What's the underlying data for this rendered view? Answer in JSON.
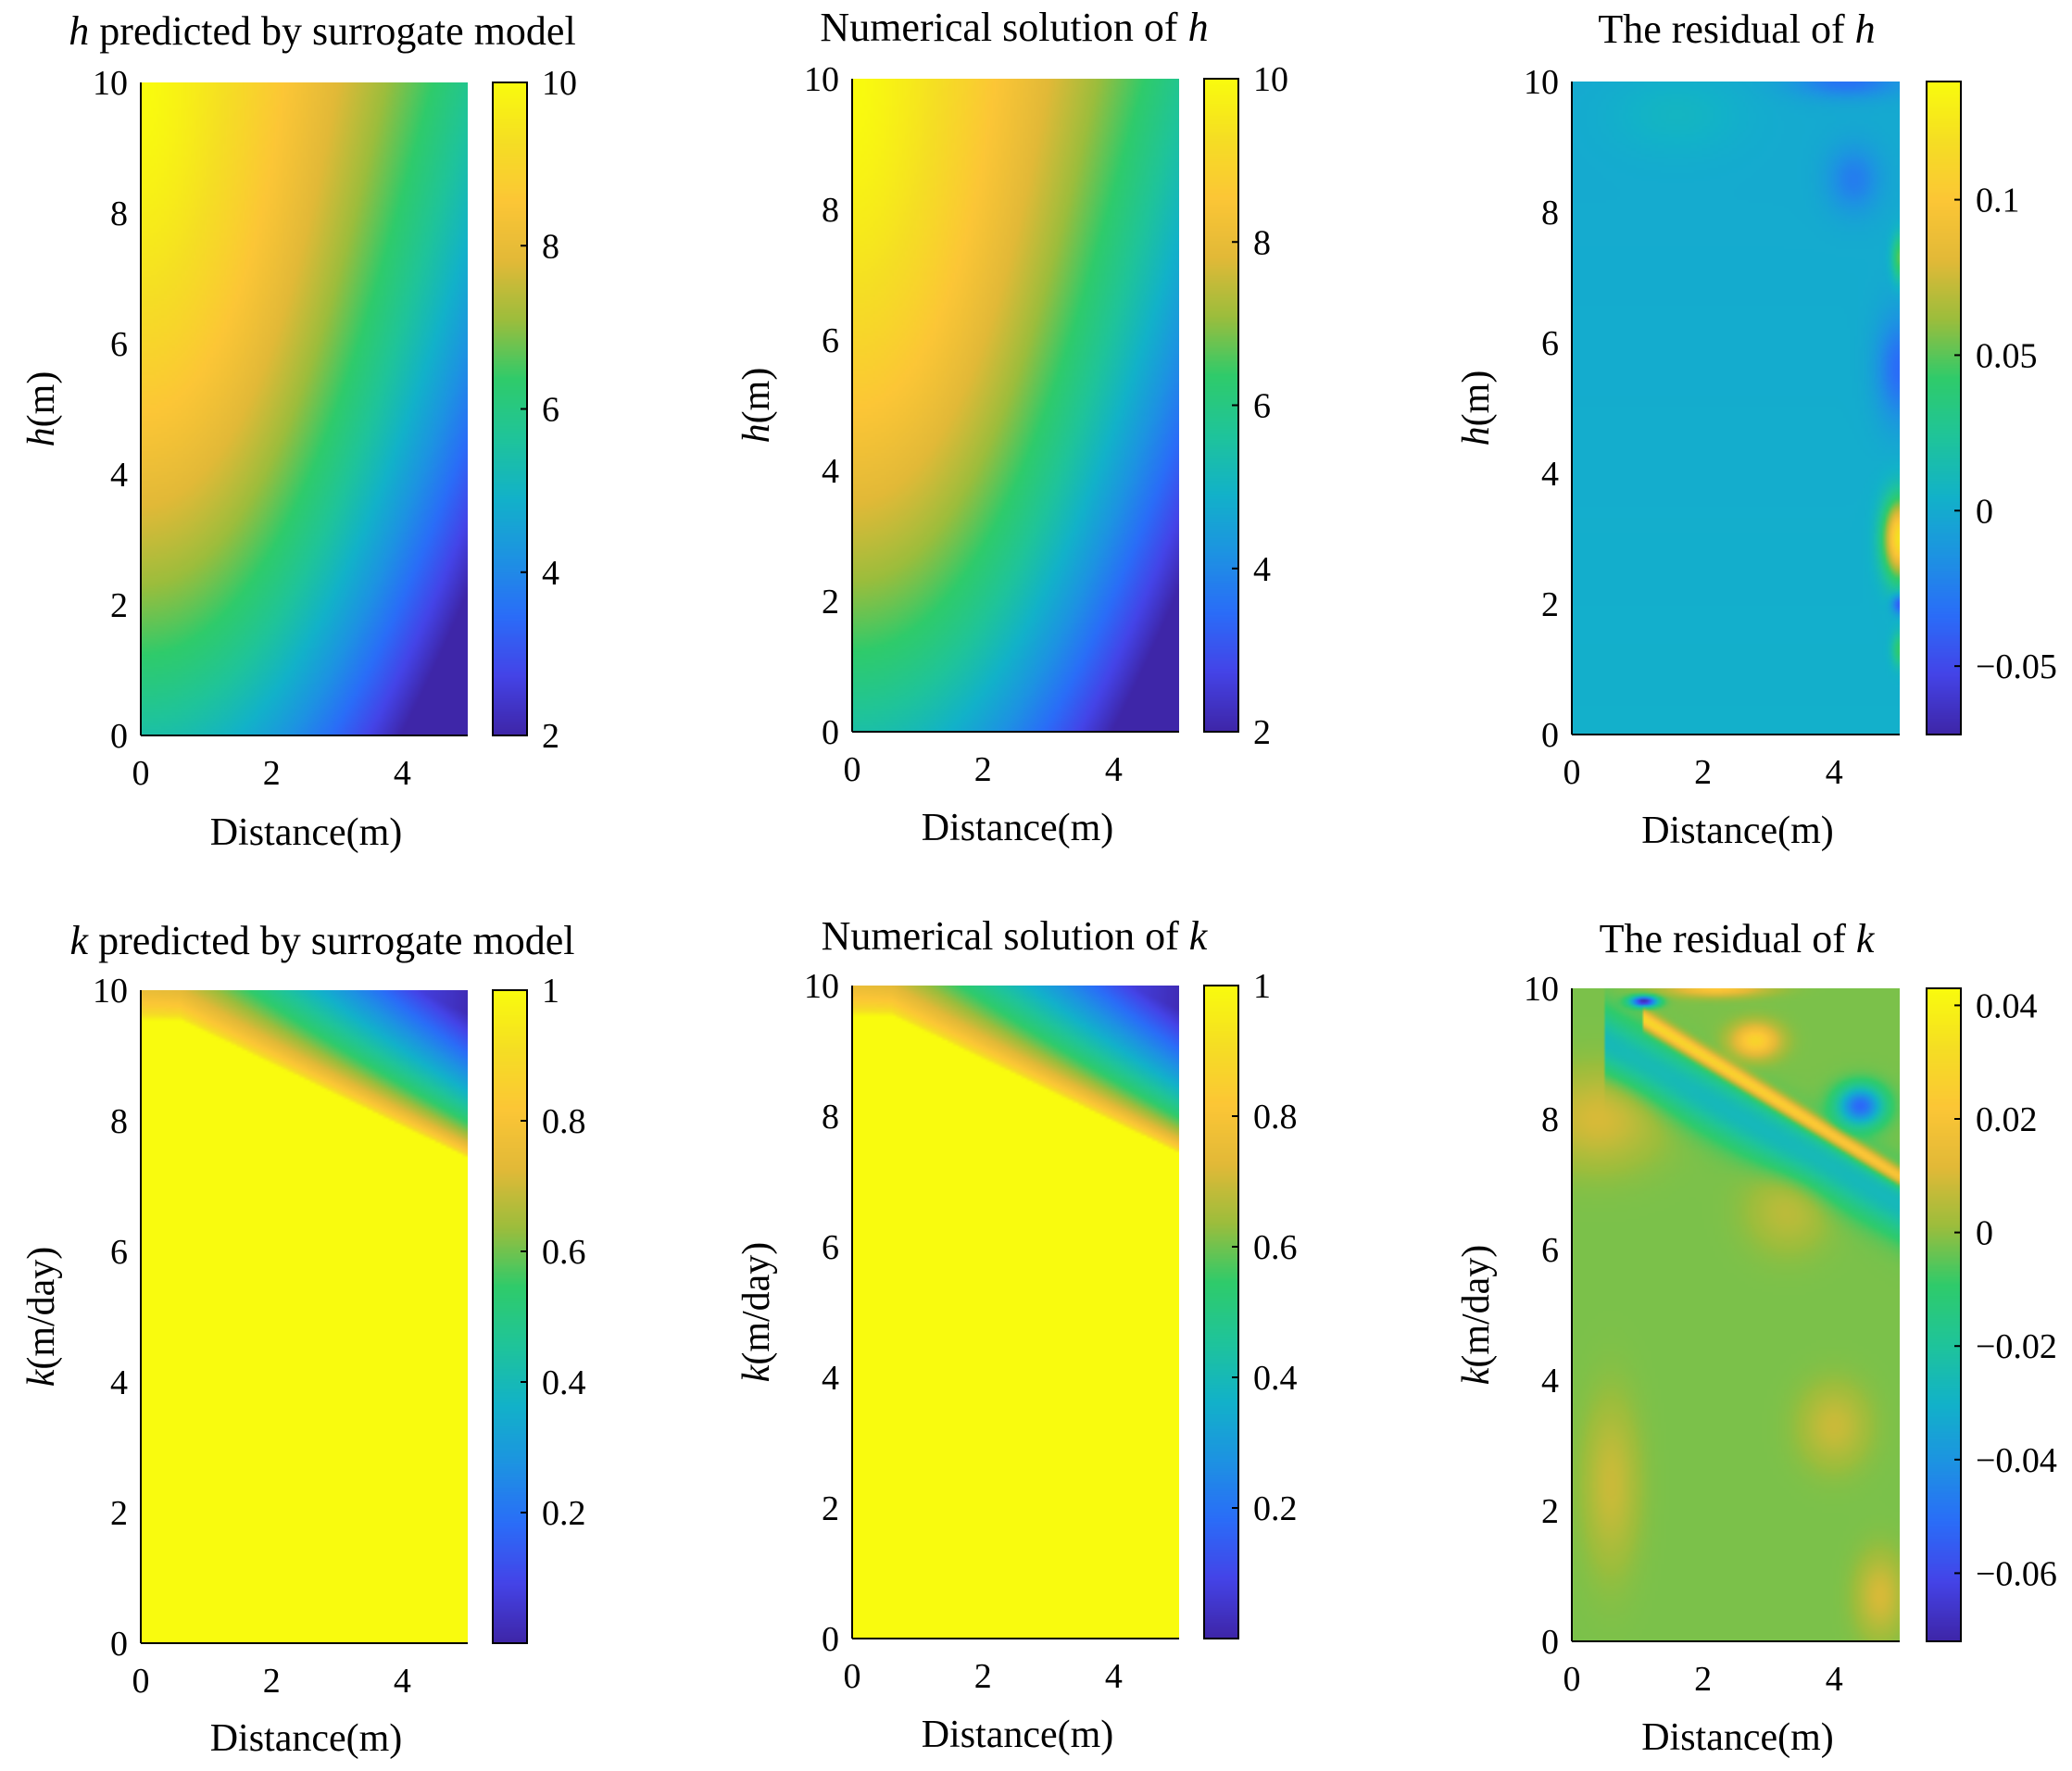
{
  "figure": {
    "colormap": [
      "#3e26a8",
      "#4444e8",
      "#2a6df8",
      "#1d93e2",
      "#12b2c9",
      "#1fc49a",
      "#2fcb6b",
      "#9cbd3c",
      "#e2b937",
      "#fcc636",
      "#f5de24",
      "#f9fb0e"
    ]
  },
  "chart_data": [
    {
      "type": "heatmap",
      "id": "h_pred",
      "title_italic": "h",
      "title_rest": " predicted by surrogate model",
      "title_order": "var-first",
      "xlabel": "Distance(m)",
      "ylabel_italic": "h",
      "ylabel_rest": "(m)",
      "xlim": [
        0,
        5
      ],
      "ylim": [
        0,
        10
      ],
      "xticks": [
        "0",
        "2",
        "4"
      ],
      "xtick_values": [
        0,
        2,
        4
      ],
      "yticks": [
        "0",
        "2",
        "4",
        "6",
        "8",
        "10"
      ],
      "ytick_values": [
        0,
        2,
        4,
        6,
        8,
        10
      ],
      "clim": [
        2,
        10
      ],
      "cbar_ticks": [
        "2",
        "4",
        "6",
        "8",
        "10"
      ],
      "cbar_values": [
        2,
        4,
        6,
        8,
        10
      ],
      "field": "h"
    },
    {
      "type": "heatmap",
      "id": "h_num",
      "title_rest": "Numerical solution of ",
      "title_italic": "h",
      "title_order": "var-last",
      "xlabel": "Distance(m)",
      "ylabel_italic": "h",
      "ylabel_rest": "(m)",
      "xlim": [
        0,
        5
      ],
      "ylim": [
        0,
        10
      ],
      "xticks": [
        "0",
        "2",
        "4"
      ],
      "xtick_values": [
        0,
        2,
        4
      ],
      "yticks": [
        "0",
        "2",
        "4",
        "6",
        "8",
        "10"
      ],
      "ytick_values": [
        0,
        2,
        4,
        6,
        8,
        10
      ],
      "clim": [
        2,
        10
      ],
      "cbar_ticks": [
        "2",
        "4",
        "6",
        "8",
        "10"
      ],
      "cbar_values": [
        2,
        4,
        6,
        8,
        10
      ],
      "field": "h"
    },
    {
      "type": "heatmap",
      "id": "h_res",
      "title_rest": "The residual of ",
      "title_italic": "h",
      "title_order": "var-last",
      "xlabel": "Distance(m)",
      "ylabel_italic": "h",
      "ylabel_rest": "(m)",
      "xlim": [
        0,
        5
      ],
      "ylim": [
        0,
        10
      ],
      "xticks": [
        "0",
        "2",
        "4"
      ],
      "xtick_values": [
        0,
        2,
        4
      ],
      "yticks": [
        "0",
        "2",
        "4",
        "6",
        "8",
        "10"
      ],
      "ytick_values": [
        0,
        2,
        4,
        6,
        8,
        10
      ],
      "clim": [
        -0.072,
        0.138
      ],
      "cbar_ticks": [
        "−0.05",
        "0",
        "0.05",
        "0.1"
      ],
      "cbar_values": [
        -0.05,
        0,
        0.05,
        0.1
      ],
      "field": "h_residual"
    },
    {
      "type": "heatmap",
      "id": "k_pred",
      "title_italic": "k",
      "title_rest": " predicted by surrogate model",
      "title_order": "var-first",
      "xlabel": "Distance(m)",
      "ylabel_italic": "k",
      "ylabel_rest": "(m/day)",
      "xlim": [
        0,
        5
      ],
      "ylim": [
        0,
        10
      ],
      "xticks": [
        "0",
        "2",
        "4"
      ],
      "xtick_values": [
        0,
        2,
        4
      ],
      "yticks": [
        "0",
        "2",
        "4",
        "6",
        "8",
        "10"
      ],
      "ytick_values": [
        0,
        2,
        4,
        6,
        8,
        10
      ],
      "clim": [
        0,
        1
      ],
      "cbar_ticks": [
        "0.2",
        "0.4",
        "0.6",
        "0.8",
        "1"
      ],
      "cbar_values": [
        0.2,
        0.4,
        0.6,
        0.8,
        1
      ],
      "field": "k"
    },
    {
      "type": "heatmap",
      "id": "k_num",
      "title_rest": "Numerical solution of ",
      "title_italic": "k",
      "title_order": "var-last",
      "xlabel": "Distance(m)",
      "ylabel_italic": "k",
      "ylabel_rest": "(m/day)",
      "xlim": [
        0,
        5
      ],
      "ylim": [
        0,
        10
      ],
      "xticks": [
        "0",
        "2",
        "4"
      ],
      "xtick_values": [
        0,
        2,
        4
      ],
      "yticks": [
        "0",
        "2",
        "4",
        "6",
        "8",
        "10"
      ],
      "ytick_values": [
        0,
        2,
        4,
        6,
        8,
        10
      ],
      "clim": [
        0,
        1
      ],
      "cbar_ticks": [
        "0.2",
        "0.4",
        "0.6",
        "0.8",
        "1"
      ],
      "cbar_values": [
        0.2,
        0.4,
        0.6,
        0.8,
        1
      ],
      "field": "k"
    },
    {
      "type": "heatmap",
      "id": "k_res",
      "title_rest": "The residual of ",
      "title_italic": "k",
      "title_order": "var-last",
      "xlabel": "Distance(m)",
      "ylabel_italic": "k",
      "ylabel_rest": "(m/day)",
      "xlim": [
        0,
        5
      ],
      "ylim": [
        0,
        10
      ],
      "xticks": [
        "0",
        "2",
        "4"
      ],
      "xtick_values": [
        0,
        2,
        4
      ],
      "yticks": [
        "0",
        "2",
        "4",
        "6",
        "8",
        "10"
      ],
      "ytick_values": [
        0,
        2,
        4,
        6,
        8,
        10
      ],
      "clim": [
        -0.072,
        0.043
      ],
      "cbar_ticks": [
        "−0.06",
        "−0.04",
        "−0.02",
        "0",
        "0.02",
        "0.04"
      ],
      "cbar_values": [
        -0.06,
        -0.04,
        -0.02,
        0,
        0.02,
        0.04
      ],
      "field": "k_residual"
    }
  ]
}
